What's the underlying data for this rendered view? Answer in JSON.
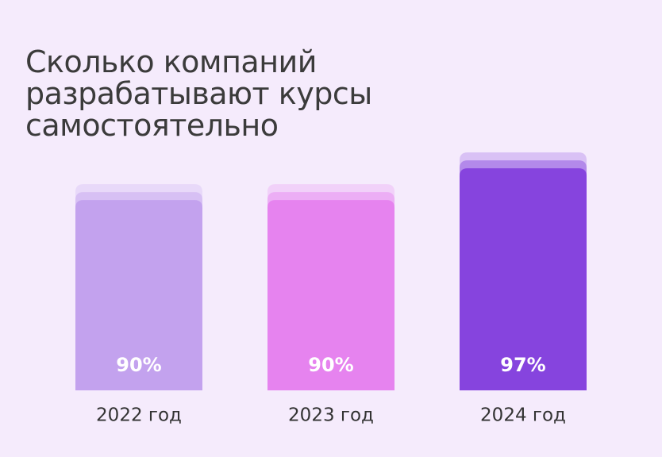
{
  "chart_data": {
    "type": "bar",
    "title": "Сколько компаний\nразрабатывают курсы\nсамостоятельно",
    "categories": [
      "2022 год",
      "2023 год",
      "2024 год"
    ],
    "values": [
      90,
      90,
      97
    ],
    "value_labels": [
      "90%",
      "90%",
      "97%"
    ],
    "colors": [
      "#c3a2ee",
      "#e683ef",
      "#8644de"
    ],
    "ylim": [
      48,
      100
    ]
  }
}
